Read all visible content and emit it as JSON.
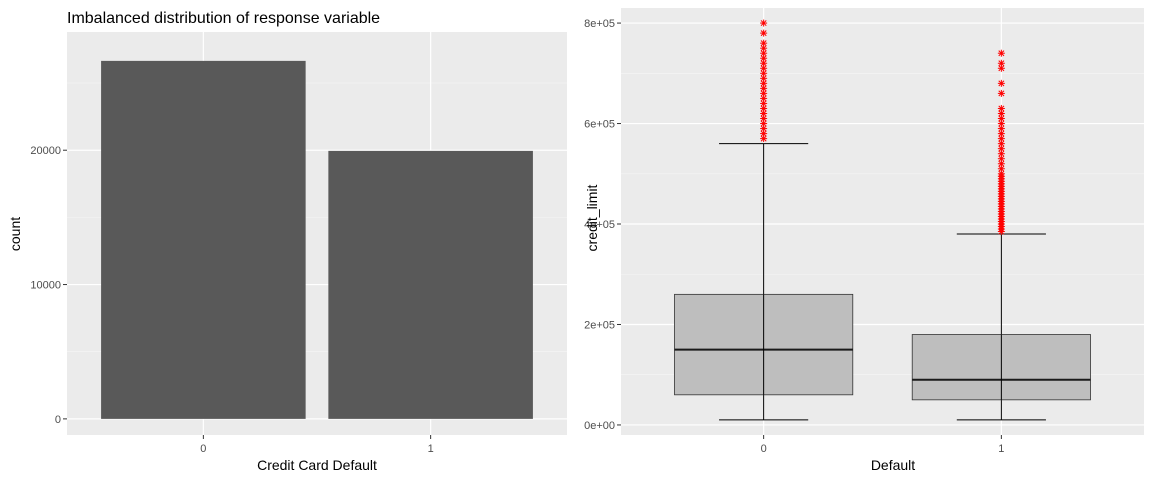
{
  "chart_data": [
    {
      "type": "bar",
      "title": "Imbalanced distribution of response variable",
      "xlabel": "Credit Card Default",
      "ylabel": "count",
      "categories": [
        "0",
        "1"
      ],
      "values": [
        26650,
        19950
      ],
      "ylim": [
        -1200,
        28800
      ],
      "yticks": [
        0,
        10000,
        20000
      ],
      "ytick_labels": [
        "0",
        "10000",
        "20000"
      ],
      "grid": true,
      "bar_color": "#595959",
      "panel_background": "#ebebeb"
    },
    {
      "type": "boxplot",
      "title": "",
      "xlabel": "Default",
      "ylabel": "credit_limit",
      "categories": [
        "0",
        "1"
      ],
      "ylim": [
        -20000,
        830000
      ],
      "yticks": [
        0,
        200000,
        400000,
        600000,
        800000
      ],
      "ytick_labels": [
        "0e+00",
        "2e+05",
        "4e+05",
        "6e+05",
        "8e+05"
      ],
      "boxes": [
        {
          "category": "0",
          "whisker_low": 10000,
          "q1": 60000,
          "median": 150000,
          "q3": 260000,
          "whisker_high": 560000,
          "outliers": [
            570000,
            580000,
            590000,
            600000,
            610000,
            620000,
            630000,
            640000,
            650000,
            660000,
            670000,
            680000,
            690000,
            700000,
            710000,
            720000,
            730000,
            740000,
            750000,
            760000,
            780000,
            800000
          ]
        },
        {
          "category": "1",
          "whisker_low": 10000,
          "q1": 50000,
          "median": 90000,
          "q3": 180000,
          "whisker_high": 380000,
          "outliers": [
            385000,
            390000,
            395000,
            400000,
            405000,
            410000,
            415000,
            420000,
            425000,
            430000,
            435000,
            440000,
            445000,
            450000,
            455000,
            460000,
            465000,
            470000,
            475000,
            480000,
            485000,
            490000,
            495000,
            500000,
            510000,
            520000,
            530000,
            540000,
            550000,
            560000,
            570000,
            580000,
            590000,
            600000,
            610000,
            620000,
            630000,
            660000,
            680000,
            710000,
            720000,
            740000
          ]
        }
      ],
      "grid": true,
      "box_fill": "#bebebe",
      "outlier_color": "#ff0000",
      "outlier_shape": "asterisk",
      "panel_background": "#ebebeb"
    }
  ]
}
